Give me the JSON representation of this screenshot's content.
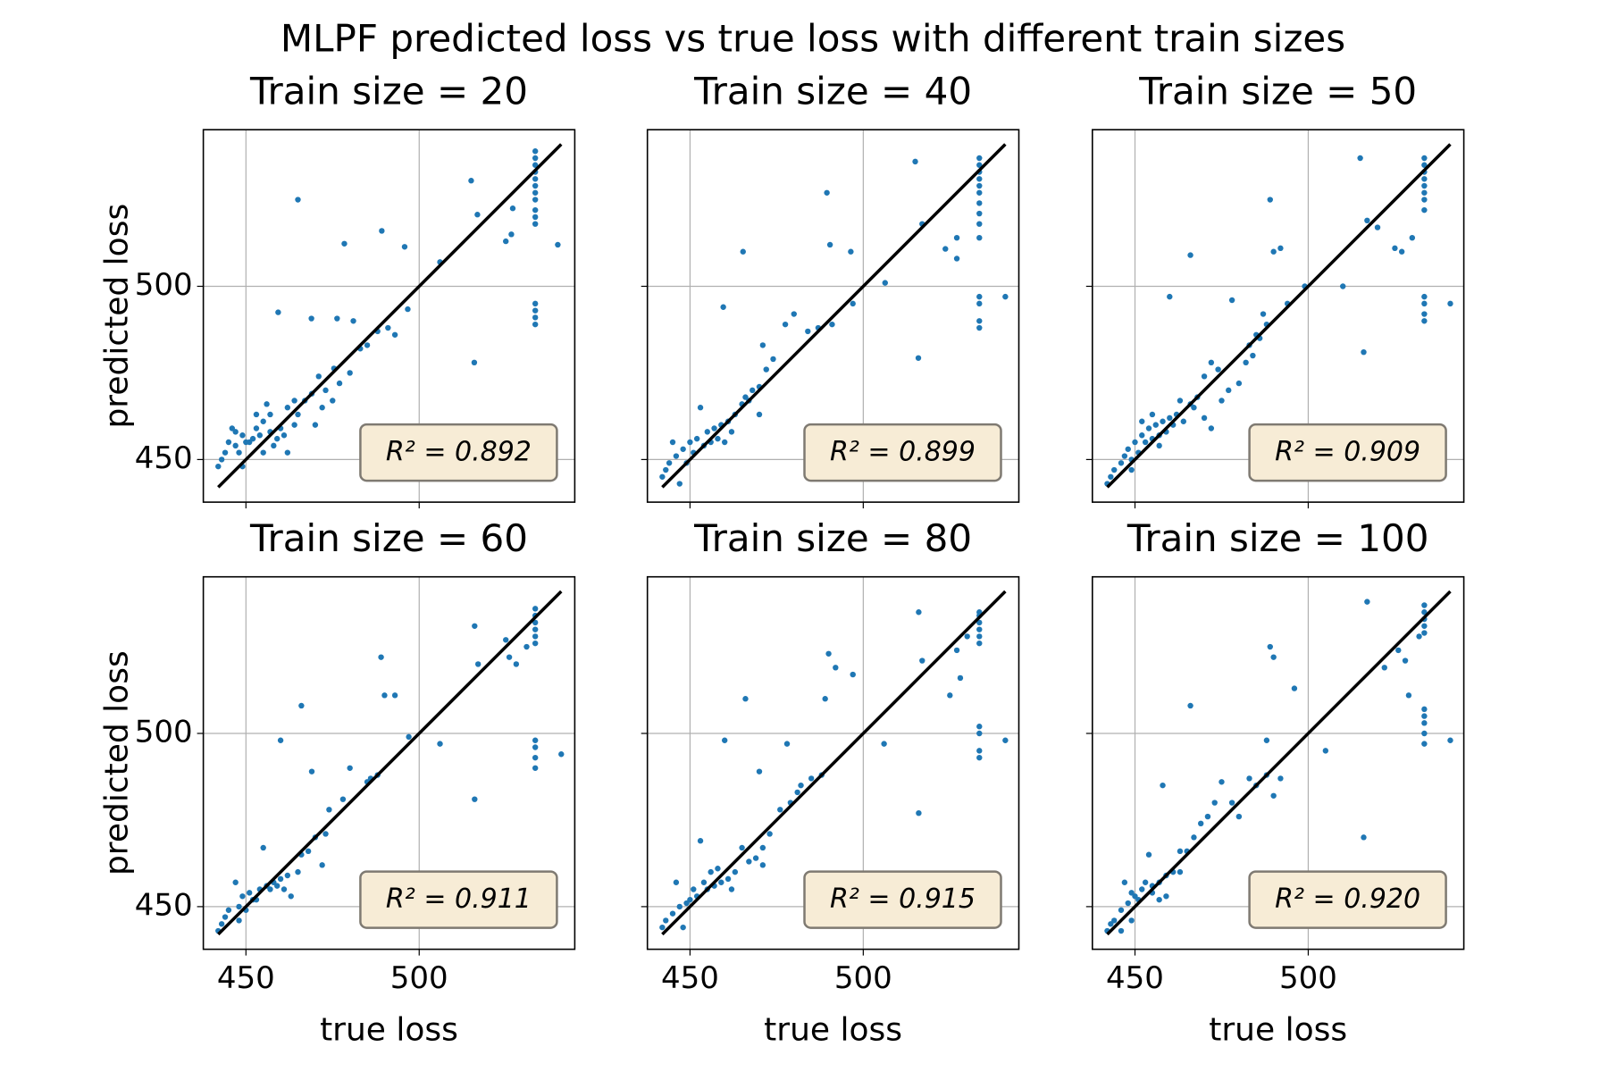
{
  "title": "MLPF predicted loss vs true loss with different train sizes",
  "chart_data": [
    {
      "type": "scatter",
      "title": "Train size = 20",
      "color": "#1f77b4",
      "x": [
        533.5,
        533.5,
        533.5,
        533.5,
        533.5,
        533.5,
        533.5,
        533.5,
        533.5,
        533.5,
        533.5,
        533.5,
        533.5,
        533.5,
        533.5,
        540,
        526.6,
        525,
        527,
        515,
        516.8,
        515.9,
        506,
        496.7,
        495.8,
        489.2,
        478.4,
        465,
        468.9,
        459.3,
        476.3,
        481,
        483,
        485,
        488,
        491,
        493,
        475.4,
        471,
        469,
        467,
        464,
        465,
        462,
        460,
        457,
        455,
        453,
        452,
        450,
        448,
        447,
        445,
        444,
        443,
        442,
        449,
        451,
        454,
        457,
        459,
        461,
        464,
        470,
        472,
        475,
        477,
        480,
        473,
        447,
        449,
        446,
        455,
        458,
        462,
        456,
        453
      ],
      "values": [
        539,
        537,
        535,
        533,
        531,
        529,
        527,
        525,
        522,
        520,
        518,
        495,
        493,
        491,
        489,
        512,
        515,
        513,
        522.5,
        530.5,
        520.7,
        478,
        507,
        493.4,
        511.4,
        516,
        512.3,
        525,
        490.7,
        492.5,
        490.7,
        490,
        482,
        483,
        487,
        488,
        486,
        476.3,
        474,
        469,
        467,
        467,
        463,
        465,
        459,
        463,
        461,
        459,
        456,
        455,
        452,
        458,
        455,
        452,
        450,
        448,
        448,
        455,
        457,
        458,
        456,
        457,
        460,
        460,
        465,
        467,
        472,
        475,
        470,
        454,
        457,
        459,
        452,
        454,
        452,
        466,
        463
      ],
      "xlim": [
        437.7,
        544.9
      ],
      "ylim": [
        437.7,
        545.2
      ],
      "xticks": [
        450,
        500
      ],
      "yticks": [
        450,
        500
      ],
      "grid": true,
      "xtick_labels": false,
      "ytick_labels": true,
      "ylabel": "predicted loss",
      "annotation": "R² = 0.892",
      "reference_line": {
        "x": [
          442,
          541
        ],
        "y": [
          442,
          541
        ],
        "color": "#000000"
      }
    },
    {
      "type": "scatter",
      "title": "Train size = 40",
      "color": "#1f77b4",
      "x": [
        533.5,
        533.5,
        533.5,
        533.5,
        533.5,
        533.5,
        533.5,
        533.5,
        533.5,
        533.5,
        533.5,
        533.5,
        533.5,
        533.5,
        541,
        515.9,
        515,
        517,
        523.7,
        527,
        527,
        506.3,
        489.5,
        490.4,
        496.4,
        465.3,
        459.6,
        477.5,
        480,
        484,
        487,
        491,
        497,
        471,
        474,
        472,
        470,
        468,
        467,
        465,
        463,
        461,
        459,
        457,
        455,
        453,
        452,
        450,
        448,
        446,
        445,
        444,
        443,
        442,
        449,
        451,
        454,
        456,
        458,
        460,
        462,
        470,
        466,
        447
      ],
      "values": [
        537,
        535,
        533,
        531,
        529,
        527,
        524,
        521,
        518,
        514,
        497,
        495,
        490,
        488,
        497,
        479.3,
        536,
        518,
        510.8,
        508,
        514,
        501,
        527,
        512,
        510,
        510,
        494,
        489,
        492,
        487,
        488,
        489,
        495,
        483,
        479,
        476,
        471,
        470,
        467,
        466,
        463,
        461,
        460,
        459,
        458,
        465,
        456,
        455,
        453,
        451,
        455,
        449,
        447,
        445,
        449,
        452,
        454,
        455,
        456,
        455,
        458,
        463,
        468,
        443
      ],
      "xlim": [
        437.7,
        544.9
      ],
      "ylim": [
        437.7,
        545.2
      ],
      "xticks": [
        450,
        500
      ],
      "yticks": [
        450,
        500
      ],
      "grid": true,
      "xtick_labels": false,
      "ytick_labels": false,
      "annotation": "R² = 0.899",
      "reference_line": {
        "x": [
          442,
          541
        ],
        "y": [
          442,
          541
        ],
        "color": "#000000"
      }
    },
    {
      "type": "scatter",
      "title": "Train size = 50",
      "color": "#1f77b4",
      "x": [
        533.5,
        533.5,
        533.5,
        533.5,
        533.5,
        533.5,
        533.5,
        533.5,
        533.5,
        533.5,
        533.5,
        533.5,
        541,
        516,
        515,
        517,
        520,
        525,
        527,
        530,
        489,
        492,
        490,
        499,
        510,
        466,
        460,
        478,
        487,
        483,
        485,
        488,
        494,
        474,
        472,
        470,
        468,
        466,
        463,
        462,
        460,
        458,
        456,
        454,
        452,
        450,
        448,
        447,
        446,
        444,
        443,
        442,
        449,
        451,
        453,
        455,
        457,
        459,
        461,
        464,
        467,
        470,
        472,
        475,
        477,
        480,
        482,
        484,
        486,
        452,
        455,
        457,
        449
      ],
      "values": [
        537,
        535,
        533,
        531,
        529,
        527,
        525,
        522,
        497,
        495,
        492,
        490,
        495,
        481,
        537,
        519,
        517,
        511,
        510,
        514,
        525,
        511,
        510,
        500,
        500,
        509,
        497,
        496,
        492,
        483,
        486,
        489,
        495,
        476,
        478,
        474,
        468,
        466,
        467,
        463,
        462,
        461,
        460,
        459,
        457,
        455,
        453,
        451,
        449,
        447,
        445,
        443,
        450,
        452,
        455,
        456,
        457,
        458,
        460,
        461,
        465,
        462,
        459,
        467,
        470,
        472,
        478,
        480,
        485,
        461,
        463,
        454,
        447
      ],
      "xlim": [
        437.7,
        544.9
      ],
      "ylim": [
        437.7,
        545.2
      ],
      "xticks": [
        450,
        500
      ],
      "yticks": [
        450,
        500
      ],
      "grid": true,
      "xtick_labels": false,
      "ytick_labels": false,
      "annotation": "R² = 0.909",
      "reference_line": {
        "x": [
          442,
          541
        ],
        "y": [
          442,
          541
        ],
        "color": "#000000"
      }
    },
    {
      "type": "scatter",
      "title": "Train size = 60",
      "color": "#1f77b4",
      "x": [
        533.5,
        533.5,
        533.5,
        533.5,
        533.5,
        533.5,
        533.5,
        533.5,
        533.5,
        533.5,
        541,
        525,
        526,
        528,
        531,
        516,
        517,
        516,
        506,
        497,
        493,
        489,
        490,
        466,
        469,
        460,
        480,
        478,
        486,
        488,
        485,
        474,
        473,
        470,
        468,
        466,
        472,
        465,
        462,
        460,
        458,
        456,
        455,
        453,
        451,
        449,
        448,
        447,
        445,
        444,
        443,
        442,
        450,
        452,
        454,
        457,
        459,
        461,
        463,
        448
      ],
      "values": [
        536,
        534,
        532,
        530,
        528,
        526,
        498,
        496,
        493,
        490,
        494,
        527,
        522,
        520,
        525,
        531,
        520,
        481,
        497,
        499,
        511,
        522,
        511,
        508,
        489,
        498,
        490,
        481,
        487,
        488,
        486,
        478,
        471,
        470,
        466,
        465,
        462,
        460,
        459,
        458,
        457,
        456,
        467,
        452,
        454,
        453,
        450,
        457,
        449,
        447,
        445,
        443,
        449,
        452,
        455,
        455,
        456,
        455,
        453,
        446
      ],
      "xlim": [
        437.7,
        544.9
      ],
      "ylim": [
        437.7,
        545.2
      ],
      "xticks": [
        450,
        500
      ],
      "yticks": [
        450,
        500
      ],
      "grid": true,
      "xtick_labels": true,
      "ytick_labels": true,
      "xlabel": "true loss",
      "ylabel": "predicted loss",
      "annotation": "R² = 0.911",
      "reference_line": {
        "x": [
          442,
          541
        ],
        "y": [
          442,
          541
        ],
        "color": "#000000"
      }
    },
    {
      "type": "scatter",
      "title": "Train size = 80",
      "color": "#1f77b4",
      "x": [
        533.5,
        533.5,
        533.5,
        533.5,
        533.5,
        533.5,
        533.5,
        533.5,
        533.5,
        533.5,
        541,
        516,
        517,
        516,
        525,
        527,
        528,
        530,
        490,
        492,
        497,
        489,
        506,
        466,
        478,
        460,
        470,
        482,
        488,
        485,
        479,
        481,
        476,
        473,
        471,
        469,
        467,
        465,
        463,
        461,
        459,
        457,
        455,
        453,
        452,
        450,
        449,
        447,
        446,
        445,
        443,
        442,
        451,
        454,
        456,
        458,
        462,
        471,
        448
      ],
      "values": [
        535,
        534,
        532,
        530,
        528,
        526,
        502,
        500,
        495,
        493,
        498,
        535,
        521,
        477,
        511,
        524,
        516,
        528,
        523,
        519,
        517,
        510,
        497,
        510,
        497,
        498,
        489,
        485,
        488,
        487,
        480,
        483,
        478,
        471,
        467,
        464,
        463,
        467,
        460,
        458,
        457,
        456,
        455,
        469,
        453,
        452,
        451,
        450,
        457,
        448,
        446,
        444,
        455,
        457,
        460,
        461,
        455,
        462,
        444
      ],
      "xlim": [
        437.7,
        544.9
      ],
      "ylim": [
        437.7,
        545.2
      ],
      "xticks": [
        450,
        500
      ],
      "yticks": [
        450,
        500
      ],
      "grid": true,
      "xtick_labels": true,
      "ytick_labels": false,
      "xlabel": "true loss",
      "annotation": "R² = 0.915",
      "reference_line": {
        "x": [
          442,
          541
        ],
        "y": [
          442,
          541
        ],
        "color": "#000000"
      }
    },
    {
      "type": "scatter",
      "title": "Train size = 100",
      "color": "#1f77b4",
      "x": [
        533.5,
        533.5,
        533.5,
        533.5,
        533.5,
        533.5,
        533.5,
        533.5,
        533.5,
        533.5,
        541,
        517,
        516,
        522,
        526,
        528,
        529,
        532,
        489,
        490,
        496,
        505,
        488,
        466,
        458,
        475,
        478,
        483,
        485,
        488,
        492,
        490,
        480,
        473,
        471,
        469,
        467,
        465,
        463,
        463,
        461,
        459,
        457,
        455,
        454,
        452,
        450,
        448,
        447,
        446,
        444,
        443,
        442,
        449,
        451,
        453,
        455,
        457,
        459,
        449,
        446
      ],
      "values": [
        537,
        535,
        533,
        531,
        529,
        507,
        505,
        503,
        500,
        497,
        498,
        538,
        470,
        519,
        524,
        521,
        511,
        528,
        525,
        522,
        513,
        495,
        498,
        508,
        485,
        486,
        480,
        487,
        485,
        488,
        487,
        482,
        476,
        480,
        476,
        474,
        470,
        466,
        466,
        460,
        460,
        459,
        457,
        456,
        465,
        455,
        453,
        451,
        457,
        449,
        446,
        445,
        443,
        454,
        452,
        457,
        454,
        452,
        453,
        446,
        443
      ],
      "xlim": [
        437.7,
        544.9
      ],
      "ylim": [
        437.7,
        545.2
      ],
      "xticks": [
        450,
        500
      ],
      "yticks": [
        450,
        500
      ],
      "grid": true,
      "xtick_labels": true,
      "ytick_labels": false,
      "xlabel": "true loss",
      "annotation": "R² = 0.920",
      "reference_line": {
        "x": [
          442,
          541
        ],
        "y": [
          442,
          541
        ],
        "color": "#000000"
      }
    }
  ]
}
